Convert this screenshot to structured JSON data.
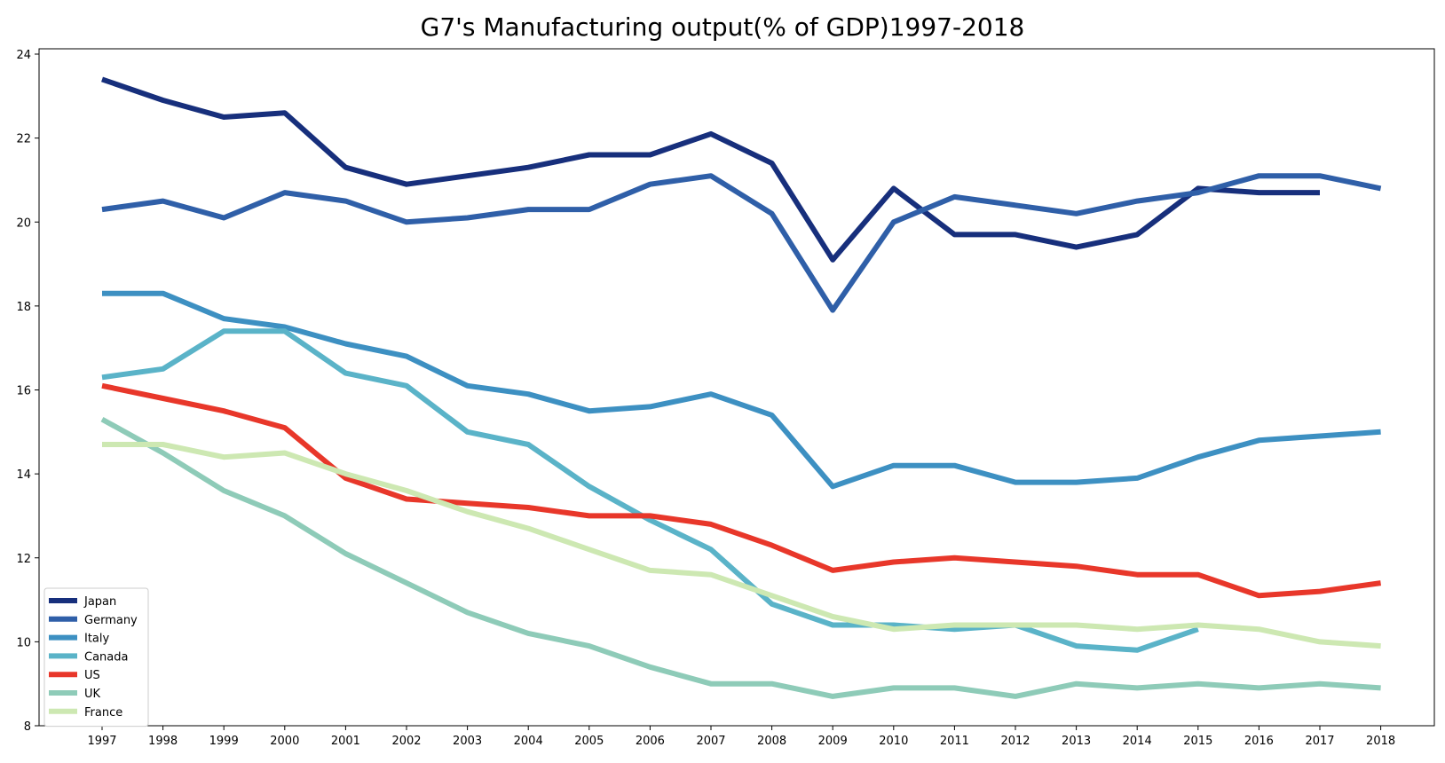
{
  "chart_data": {
    "type": "line",
    "title": "G7's Manufacturing output(% of GDP)1997-2018",
    "xlabel": "",
    "ylabel": "",
    "x": [
      "1997",
      "1998",
      "1999",
      "2000",
      "2001",
      "2002",
      "2003",
      "2004",
      "2005",
      "2006",
      "2007",
      "2008",
      "2009",
      "2010",
      "2011",
      "2012",
      "2013",
      "2014",
      "2015",
      "2016",
      "2017",
      "2018"
    ],
    "ylim": [
      8,
      24
    ],
    "yticks": [
      8,
      10,
      12,
      14,
      16,
      18,
      20,
      22,
      24
    ],
    "grid": false,
    "legend_position": "lower-left",
    "series": [
      {
        "name": "Japan",
        "color": "#172f7c",
        "values": [
          23.4,
          22.9,
          22.5,
          22.6,
          21.3,
          20.9,
          21.1,
          21.3,
          21.6,
          21.6,
          22.1,
          21.4,
          19.1,
          20.8,
          19.7,
          19.7,
          19.4,
          19.7,
          20.8,
          20.7,
          20.7,
          null
        ]
      },
      {
        "name": "Germany",
        "color": "#2f5fa8",
        "values": [
          20.3,
          20.5,
          20.1,
          20.7,
          20.5,
          20.0,
          20.1,
          20.3,
          20.3,
          20.9,
          21.1,
          20.2,
          17.9,
          20.0,
          20.6,
          20.4,
          20.2,
          20.5,
          20.7,
          21.1,
          21.1,
          20.8
        ]
      },
      {
        "name": "Italy",
        "color": "#3d90c2",
        "values": [
          18.3,
          18.3,
          17.7,
          17.5,
          17.1,
          16.8,
          16.1,
          15.9,
          15.5,
          15.6,
          15.9,
          15.4,
          13.7,
          14.2,
          14.2,
          13.8,
          13.8,
          13.9,
          14.4,
          14.8,
          14.9,
          15.0
        ]
      },
      {
        "name": "Canada",
        "color": "#5ab3c8",
        "values": [
          16.3,
          16.5,
          17.4,
          17.4,
          16.4,
          16.1,
          15.0,
          14.7,
          13.7,
          12.9,
          12.2,
          10.9,
          10.4,
          10.4,
          10.3,
          10.4,
          9.9,
          9.8,
          10.3,
          null,
          null,
          null
        ]
      },
      {
        "name": "US",
        "color": "#e8372a",
        "values": [
          16.1,
          15.8,
          15.5,
          15.1,
          13.9,
          13.4,
          13.3,
          13.2,
          13.0,
          13.0,
          12.8,
          12.3,
          11.7,
          11.9,
          12.0,
          11.9,
          11.8,
          11.6,
          11.6,
          11.1,
          11.2,
          11.4
        ]
      },
      {
        "name": "UK",
        "color": "#8ecbb8",
        "values": [
          15.3,
          14.5,
          13.6,
          13.0,
          12.1,
          11.4,
          10.7,
          10.2,
          9.9,
          9.4,
          9.0,
          9.0,
          8.7,
          8.9,
          8.9,
          8.7,
          9.0,
          8.9,
          9.0,
          8.9,
          9.0,
          8.9
        ]
      },
      {
        "name": "France",
        "color": "#cde8b2",
        "values": [
          14.7,
          14.7,
          14.4,
          14.5,
          14.0,
          13.6,
          13.1,
          12.7,
          12.2,
          11.7,
          11.6,
          11.1,
          10.6,
          10.3,
          10.4,
          10.4,
          10.4,
          10.3,
          10.4,
          10.3,
          10.0,
          9.9
        ]
      }
    ]
  }
}
